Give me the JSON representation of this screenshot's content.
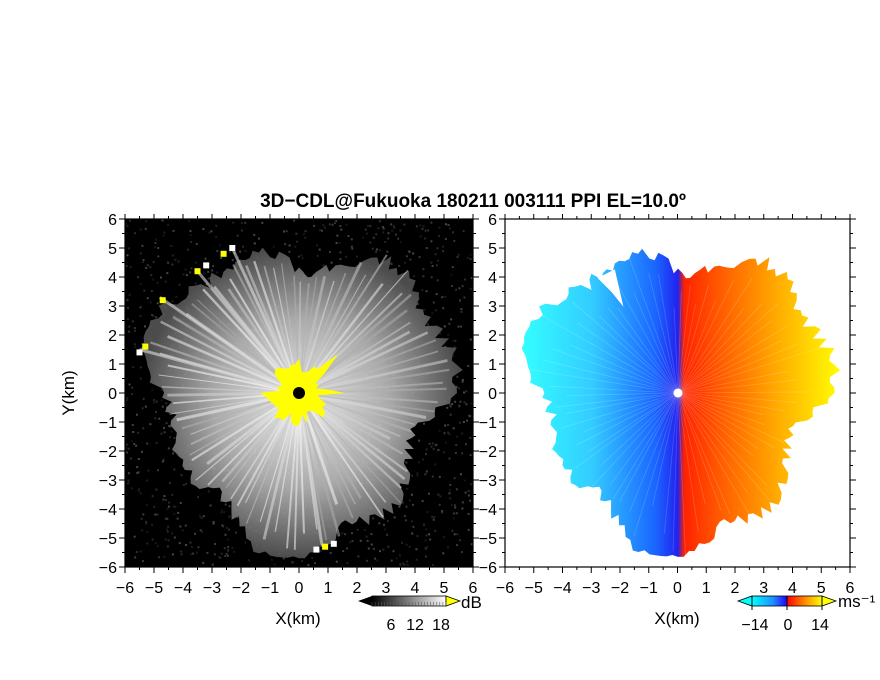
{
  "chart_data": {
    "type": "heatmap",
    "title": "3D−CDL@Fukuoka 180211 003111 PPI EL=10.0º",
    "x_ticks": [
      "−6",
      "−5",
      "−4",
      "−3",
      "−2",
      "−1",
      "0",
      "1",
      "2",
      "3",
      "4",
      "5",
      "6"
    ],
    "y_ticks": [
      "−6",
      "−5",
      "−4",
      "−3",
      "−2",
      "−1",
      "0",
      "1",
      "2",
      "3",
      "4",
      "5",
      "6"
    ],
    "xlim": [
      -6,
      6
    ],
    "ylim": [
      -6,
      6
    ],
    "panels": [
      {
        "quantity": "reflectivity",
        "xlabel": "X(km)",
        "ylabel": "Y(km)",
        "colormap": "grayscale (black to white), yellow above scale",
        "colorbar": {
          "ticks": [
            "6",
            "12",
            "18"
          ],
          "values": [
            6,
            12,
            18
          ],
          "unit": "dB"
        },
        "background": "#000000",
        "strong_echoes_color": "#ffff00"
      },
      {
        "quantity": "doppler velocity",
        "xlabel": "X(km)",
        "ylabel": "",
        "colormap": "cyan-blue (negative) to red-yellow (positive)",
        "colorbar": {
          "ticks": [
            "−14",
            "0",
            "14"
          ],
          "values": [
            -14,
            0,
            14
          ],
          "unit": "ms⁻¹"
        },
        "background": "#ffffff"
      }
    ]
  }
}
